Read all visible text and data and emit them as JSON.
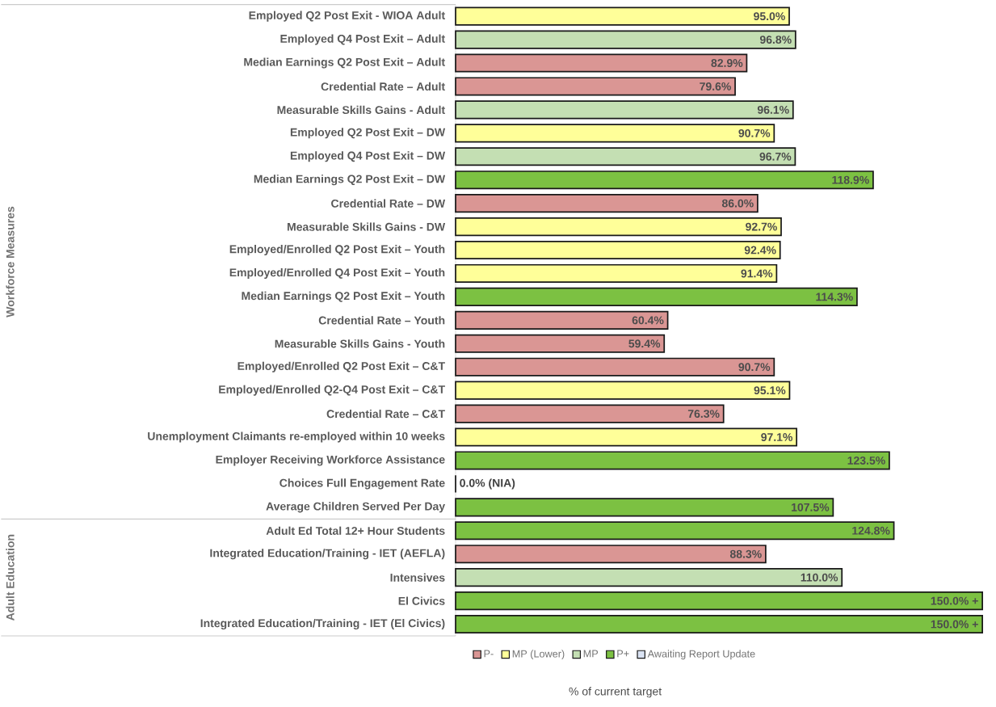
{
  "chart_data": {
    "type": "bar",
    "orientation": "horizontal",
    "legend": "bottom",
    "annotations": [
      "Workforce Measures",
      "Adult Education",
      "% of current target"
    ],
    "categories": [
      "Employed Q2 Post Exit - WIOA Adult",
      "Employed Q4 Post Exit – Adult",
      "Median Earnings Q2 Post Exit – Adult",
      "Credential Rate – Adult",
      "Measurable Skills Gains - Adult",
      "Employed Q2 Post Exit – DW",
      "Employed Q4 Post Exit – DW",
      "Median Earnings Q2 Post Exit – DW",
      "Credential Rate – DW",
      "Measurable Skills Gains - DW",
      "Employed/Enrolled Q2 Post Exit – Youth",
      "Employed/Enrolled Q4 Post Exit – Youth",
      "Median Earnings Q2 Post Exit – Youth",
      "Credential Rate – Youth",
      "Measurable Skills Gains - Youth",
      "Employed/Enrolled Q2 Post Exit – C&T",
      "Employed/Enrolled Q2-Q4 Post Exit – C&T",
      "Credential Rate – C&T",
      "Unemployment Claimants re-employed within 10 weeks",
      "Employer Receiving Workforce Assistance",
      "Choices Full Engagement Rate",
      "Average Children Served Per Day",
      "Adult Ed Total 12+ Hour Students",
      "Integrated Education/Training - IET (AEFLA)",
      "Intensives",
      "El Civics",
      "Integrated Education/Training - IET (El Civics)"
    ],
    "series": [
      {
        "name": "P-",
        "color": "#da9694",
        "values": [
          null,
          null,
          82.9,
          79.6,
          null,
          null,
          null,
          null,
          86.0,
          null,
          null,
          null,
          null,
          60.4,
          59.4,
          90.7,
          null,
          76.3,
          null,
          null,
          null,
          null,
          null,
          88.3,
          null,
          null,
          null
        ],
        "value_labels": [
          null,
          null,
          "82.9%",
          "79.6%",
          null,
          null,
          null,
          null,
          "86.0%",
          null,
          null,
          null,
          null,
          "60.4%",
          "59.4%",
          "90.7%",
          null,
          "76.3%",
          null,
          null,
          null,
          null,
          null,
          "88.3%",
          null,
          null,
          null
        ]
      },
      {
        "name": "MP (Lower)",
        "color": "#ffff99",
        "values": [
          95.0,
          null,
          null,
          null,
          null,
          90.7,
          null,
          null,
          null,
          92.7,
          92.4,
          91.4,
          null,
          null,
          null,
          null,
          95.1,
          null,
          97.1,
          null,
          null,
          null,
          null,
          null,
          null,
          null,
          null
        ],
        "value_labels": [
          "95.0%",
          null,
          null,
          null,
          null,
          "90.7%",
          null,
          null,
          null,
          "92.7%",
          "92.4%",
          "91.4%",
          null,
          null,
          null,
          null,
          "95.1%",
          null,
          "97.1%",
          null,
          null,
          null,
          null,
          null,
          null,
          null,
          null
        ]
      },
      {
        "name": "MP",
        "color": "#c4dfb3",
        "values": [
          null,
          96.8,
          null,
          null,
          96.1,
          null,
          96.7,
          null,
          null,
          null,
          null,
          null,
          null,
          null,
          null,
          null,
          null,
          null,
          null,
          null,
          null,
          null,
          null,
          null,
          110.0,
          null,
          null
        ],
        "value_labels": [
          null,
          "96.8%",
          null,
          null,
          "96.1%",
          null,
          "96.7%",
          null,
          null,
          null,
          null,
          null,
          null,
          null,
          null,
          null,
          null,
          null,
          null,
          null,
          null,
          null,
          null,
          null,
          "110.0%",
          null,
          null
        ]
      },
      {
        "name": "P+",
        "color": "#7cc142",
        "values": [
          null,
          null,
          null,
          null,
          null,
          null,
          null,
          118.9,
          null,
          null,
          null,
          null,
          114.3,
          null,
          null,
          null,
          null,
          null,
          null,
          123.5,
          null,
          107.5,
          124.8,
          null,
          null,
          150.0,
          150.0
        ],
        "value_labels": [
          null,
          null,
          null,
          null,
          null,
          null,
          null,
          "118.9%",
          null,
          null,
          null,
          null,
          "114.3%",
          null,
          null,
          null,
          null,
          null,
          null,
          "123.5%",
          null,
          "107.5%",
          "124.8%",
          null,
          null,
          "150.0% +",
          "150.0% +"
        ]
      },
      {
        "name": "Awaiting Report Update",
        "color": "#dae3f3",
        "values": [
          null,
          null,
          null,
          null,
          null,
          null,
          null,
          null,
          null,
          null,
          null,
          null,
          null,
          null,
          null,
          null,
          null,
          null,
          null,
          null,
          0.0,
          null,
          null,
          null,
          null,
          null,
          null
        ],
        "value_labels": [
          null,
          null,
          null,
          null,
          null,
          null,
          null,
          null,
          null,
          null,
          null,
          null,
          null,
          null,
          null,
          null,
          null,
          null,
          null,
          null,
          "0.0% (NIA)",
          null,
          null,
          null,
          null,
          null,
          null
        ]
      }
    ]
  }
}
